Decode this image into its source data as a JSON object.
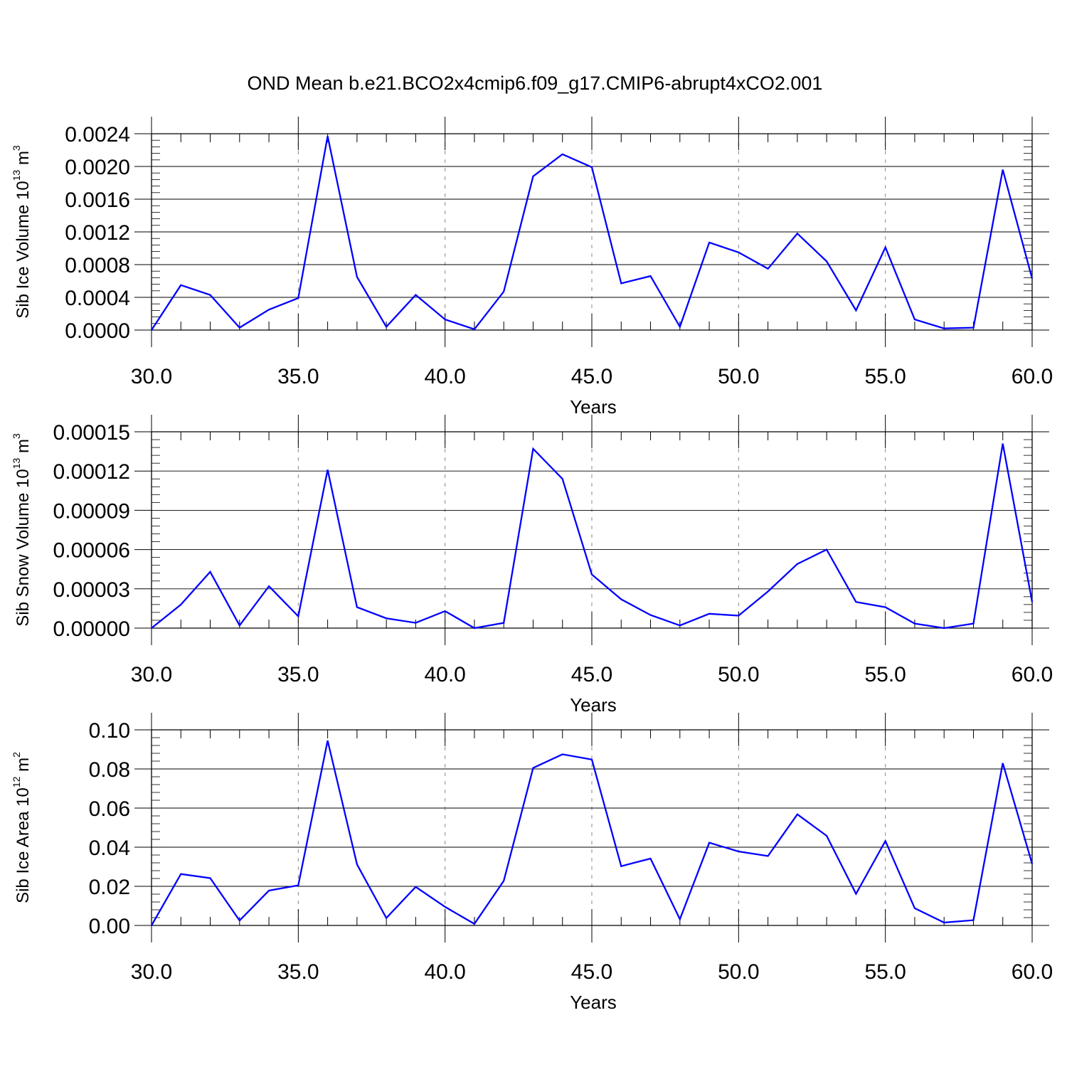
{
  "title": "OND Mean b.e21.BCO2x4cmip6.f09_g17.CMIP6-abrupt4xCO2.001",
  "colors": {
    "line": "#0000ff",
    "axis": "#000000",
    "grid": "#888888"
  },
  "chart_data": [
    {
      "type": "line",
      "ylabel": {
        "text": "Sib Ice Volume 10",
        "sup1": "13",
        "unit": " m",
        "sup2": "3"
      },
      "xlabel": "Years",
      "xlim": [
        30,
        60
      ],
      "ylim": [
        0,
        0.0024
      ],
      "xticks": [
        "30.0",
        "35.0",
        "40.0",
        "45.0",
        "50.0",
        "55.0",
        "60.0"
      ],
      "yticks": [
        "0.0000",
        "0.0004",
        "0.0008",
        "0.0012",
        "0.0016",
        "0.0020",
        "0.0024"
      ],
      "x": [
        30,
        31,
        32,
        33,
        34,
        35,
        36,
        37,
        38,
        39,
        40,
        41,
        42,
        43,
        44,
        45,
        46,
        47,
        48,
        49,
        50,
        51,
        52,
        53,
        54,
        55,
        56,
        57,
        58,
        59,
        60
      ],
      "values": [
        0.0,
        0.00055,
        0.00043,
        3e-05,
        0.00025,
        0.00039,
        0.00237,
        0.00065,
        4e-05,
        0.00043,
        0.00013,
        1e-05,
        0.00047,
        0.00188,
        0.00215,
        0.00199,
        0.00057,
        0.00066,
        4e-05,
        0.00107,
        0.00095,
        0.00075,
        0.00118,
        0.00084,
        0.00024,
        0.00101,
        0.00013,
        2e-05,
        3e-05,
        0.00196,
        0.00063
      ]
    },
    {
      "type": "line",
      "ylabel": {
        "text": "Sib Snow Volume 10",
        "sup1": "13",
        "unit": " m",
        "sup2": "3"
      },
      "xlabel": "Years",
      "xlim": [
        30,
        60
      ],
      "ylim": [
        0,
        0.00015
      ],
      "xticks": [
        "30.0",
        "35.0",
        "40.0",
        "45.0",
        "50.0",
        "55.0",
        "60.0"
      ],
      "yticks": [
        "0.00000",
        "0.00003",
        "0.00006",
        "0.00009",
        "0.00012",
        "0.00015"
      ],
      "x": [
        30,
        31,
        32,
        33,
        34,
        35,
        36,
        37,
        38,
        39,
        40,
        41,
        42,
        43,
        44,
        45,
        46,
        47,
        48,
        49,
        50,
        51,
        52,
        53,
        54,
        55,
        56,
        57,
        58,
        59,
        60
      ],
      "values": [
        0.0,
        1.8e-05,
        4.3e-05,
        2e-06,
        3.2e-05,
        9e-06,
        0.000121,
        1.6e-05,
        7.5e-06,
        4e-06,
        1.3e-05,
        0.0,
        4e-06,
        0.000137,
        0.000114,
        4.1e-05,
        2.2e-05,
        1e-05,
        2e-06,
        1.1e-05,
        9.5e-06,
        2.8e-05,
        4.9e-05,
        6e-05,
        2e-05,
        1.6e-05,
        3.5e-06,
        0.0,
        3.5e-06,
        0.000141,
        2e-05
      ]
    },
    {
      "type": "line",
      "ylabel": {
        "text": "Sib Ice Area 10",
        "sup1": "12",
        "unit": " m",
        "sup2": "2"
      },
      "xlabel": "Years",
      "xlim": [
        30,
        60
      ],
      "ylim": [
        0,
        0.1
      ],
      "xticks": [
        "30.0",
        "35.0",
        "40.0",
        "45.0",
        "50.0",
        "55.0",
        "60.0"
      ],
      "yticks": [
        "0.00",
        "0.02",
        "0.04",
        "0.06",
        "0.08",
        "0.10"
      ],
      "x": [
        30,
        31,
        32,
        33,
        34,
        35,
        36,
        37,
        38,
        39,
        40,
        41,
        42,
        43,
        44,
        45,
        46,
        47,
        48,
        49,
        50,
        51,
        52,
        53,
        54,
        55,
        56,
        57,
        58,
        59,
        60
      ],
      "values": [
        0.0,
        0.0263,
        0.0242,
        0.0025,
        0.0178,
        0.0205,
        0.0945,
        0.0312,
        0.0038,
        0.0197,
        0.0095,
        0.0008,
        0.0228,
        0.0805,
        0.0875,
        0.0848,
        0.0303,
        0.0342,
        0.0032,
        0.0423,
        0.0378,
        0.0355,
        0.0568,
        0.0458,
        0.0162,
        0.0432,
        0.0088,
        0.0015,
        0.0027,
        0.083,
        0.0315
      ]
    }
  ]
}
